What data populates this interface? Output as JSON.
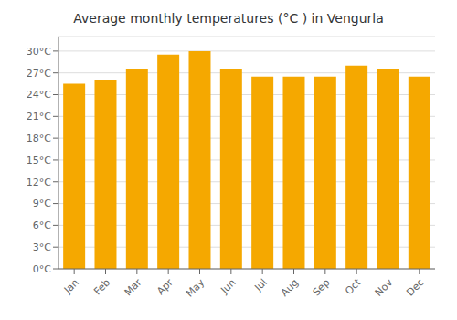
{
  "chart_data": {
    "type": "bar",
    "title": "Average monthly temperatures (°C ) in Vengurla",
    "categories": [
      "Jan",
      "Feb",
      "Mar",
      "Apr",
      "May",
      "Jun",
      "Jul",
      "Aug",
      "Sep",
      "Oct",
      "Nov",
      "Dec"
    ],
    "values": [
      25.5,
      26.0,
      27.5,
      29.5,
      30.0,
      27.5,
      26.5,
      26.5,
      26.5,
      28.0,
      27.5,
      26.5
    ],
    "color": "#F5A800",
    "ylim": [
      0,
      32
    ],
    "yticks": [
      {
        "value": 0,
        "label": "0°C"
      },
      {
        "value": 3,
        "label": "3°C"
      },
      {
        "value": 6,
        "label": "6°C"
      },
      {
        "value": 9,
        "label": "9°C"
      },
      {
        "value": 12,
        "label": "12°C"
      },
      {
        "value": 15,
        "label": "15°C"
      },
      {
        "value": 18,
        "label": "18°C"
      },
      {
        "value": 21,
        "label": "21°C"
      },
      {
        "value": 24,
        "label": "24°C"
      },
      {
        "value": 27,
        "label": "27°C"
      },
      {
        "value": 30,
        "label": "30°C"
      }
    ],
    "grid": true
  }
}
